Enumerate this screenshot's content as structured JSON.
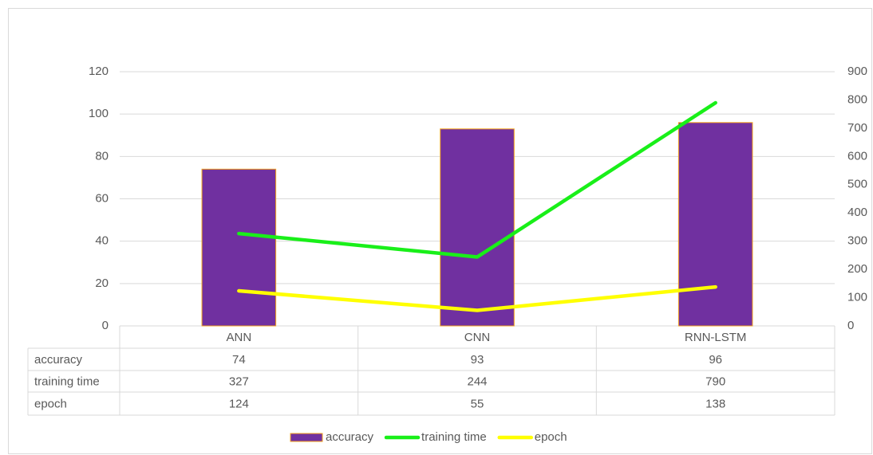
{
  "chart_data": {
    "type": "bar_line",
    "categories": [
      "ANN",
      "CNN",
      "RNN-LSTM"
    ],
    "series": [
      {
        "name": "accuracy",
        "type": "bar",
        "color": "#7030a0",
        "edge_color": "#f4a21c",
        "values": [
          74,
          93,
          96
        ]
      },
      {
        "name": "training time",
        "type": "line",
        "axis": "y2",
        "color": "#19ef19",
        "values": [
          327,
          244,
          790
        ]
      },
      {
        "name": "epoch",
        "type": "line",
        "axis": "y2",
        "color": "#ffff00",
        "values": [
          124,
          55,
          138
        ]
      }
    ],
    "ylim": [
      0,
      120
    ],
    "yticks": [
      0,
      20,
      40,
      60,
      80,
      100,
      120
    ],
    "y2lim": [
      0,
      900
    ],
    "y2ticks": [
      0,
      100,
      200,
      300,
      400,
      500,
      600,
      700,
      800,
      900
    ],
    "grid": true,
    "legend": "bottom",
    "data_table": true
  }
}
